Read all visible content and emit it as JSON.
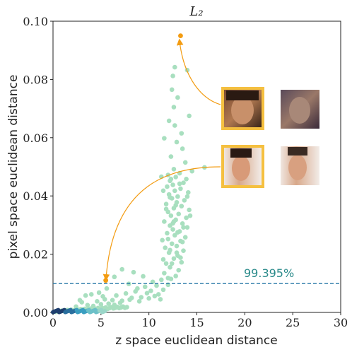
{
  "chart_data": {
    "type": "scatter",
    "title": "L₂",
    "xlabel": "z space euclidean distance",
    "ylabel": "pixel space euclidean distance",
    "xlim": [
      0,
      30
    ],
    "ylim": [
      0,
      0.1
    ],
    "xticks": [
      "0",
      "5",
      "10",
      "15",
      "20",
      "25",
      "30"
    ],
    "yticks": [
      "0.00",
      "0.02",
      "0.04",
      "0.06",
      "0.08",
      "0.10"
    ],
    "threshold": {
      "y": 0.0099,
      "label": "99.395%",
      "color": "#2a7aa8",
      "label_color": "#2a8a8a"
    },
    "point_color": "#a8dfbf",
    "highlight_color": "#f39c12",
    "highlighted_points": [
      {
        "x": 13.3,
        "y": 0.095
      },
      {
        "x": 5.5,
        "y": 0.011
      }
    ],
    "dense_points_near_origin_color": "#1f4e79",
    "points": [
      [
        0.3,
        0.0002
      ],
      [
        0.5,
        0.0004
      ],
      [
        0.7,
        0.0003
      ],
      [
        0.9,
        0.0006
      ],
      [
        1.1,
        0.0005
      ],
      [
        1.3,
        0.0007
      ],
      [
        1.5,
        0.0008
      ],
      [
        1.7,
        0.0006
      ],
      [
        1.9,
        0.0009
      ],
      [
        2.1,
        0.0007
      ],
      [
        2.3,
        0.0008
      ],
      [
        2.5,
        0.001
      ],
      [
        2.7,
        0.0009
      ],
      [
        2.9,
        0.0011
      ],
      [
        3.1,
        0.001
      ],
      [
        3.3,
        0.0012
      ],
      [
        3.5,
        0.0009
      ],
      [
        3.7,
        0.0011
      ],
      [
        3.9,
        0.0013
      ],
      [
        4.1,
        0.001
      ],
      [
        4.3,
        0.0014
      ],
      [
        4.5,
        0.0012
      ],
      [
        4.7,
        0.0015
      ],
      [
        4.9,
        0.0011
      ],
      [
        5.1,
        0.0016
      ],
      [
        5.3,
        0.0013
      ],
      [
        5.5,
        0.0017
      ],
      [
        5.7,
        0.0012
      ],
      [
        5.9,
        0.0015
      ],
      [
        6.1,
        0.0018
      ],
      [
        6.3,
        0.0014
      ],
      [
        6.5,
        0.0016
      ],
      [
        6.7,
        0.0019
      ],
      [
        6.9,
        0.0015
      ],
      [
        7.1,
        0.0017
      ],
      [
        7.3,
        0.002
      ],
      [
        7.5,
        0.0016
      ],
      [
        7.7,
        0.0018
      ],
      [
        2.4,
        0.002
      ],
      [
        3.6,
        0.0025
      ],
      [
        4.2,
        0.0022
      ],
      [
        5.0,
        0.0028
      ],
      [
        5.8,
        0.003
      ],
      [
        6.4,
        0.0026
      ],
      [
        7.0,
        0.0033
      ],
      [
        3.0,
        0.0035
      ],
      [
        4.6,
        0.0038
      ],
      [
        5.4,
        0.0045
      ],
      [
        6.2,
        0.0042
      ],
      [
        7.2,
        0.004
      ],
      [
        4.0,
        0.0062
      ],
      [
        5.2,
        0.0055
      ],
      [
        6.6,
        0.0058
      ],
      [
        7.6,
        0.0065
      ],
      [
        8.2,
        0.005
      ],
      [
        8.6,
        0.0072
      ],
      [
        9.2,
        0.0052
      ],
      [
        9.6,
        0.0088
      ],
      [
        10.2,
        0.0074
      ],
      [
        10.8,
        0.0092
      ],
      [
        9.0,
        0.0038
      ],
      [
        8.0,
        0.0044
      ],
      [
        10.0,
        0.0048
      ],
      [
        11.0,
        0.0062
      ],
      [
        11.5,
        0.0078
      ],
      [
        12.0,
        0.0095
      ],
      [
        12.3,
        0.0115
      ],
      [
        12.8,
        0.0125
      ],
      [
        11.6,
        0.0135
      ],
      [
        13.1,
        0.0145
      ],
      [
        12.2,
        0.0155
      ],
      [
        11.8,
        0.0168
      ],
      [
        13.4,
        0.0172
      ],
      [
        12.6,
        0.0185
      ],
      [
        13.0,
        0.0195
      ],
      [
        12.1,
        0.0205
      ],
      [
        13.6,
        0.0212
      ],
      [
        11.7,
        0.0222
      ],
      [
        12.9,
        0.0228
      ],
      [
        12.4,
        0.0236
      ],
      [
        13.3,
        0.0245
      ],
      [
        12.0,
        0.0252
      ],
      [
        13.8,
        0.0258
      ],
      [
        12.7,
        0.0265
      ],
      [
        11.9,
        0.0272
      ],
      [
        13.2,
        0.0278
      ],
      [
        12.5,
        0.0285
      ],
      [
        14.0,
        0.0292
      ],
      [
        12.2,
        0.0298
      ],
      [
        13.5,
        0.0305
      ],
      [
        11.6,
        0.0312
      ],
      [
        12.8,
        0.0318
      ],
      [
        13.9,
        0.0325
      ],
      [
        12.3,
        0.0332
      ],
      [
        13.1,
        0.0338
      ],
      [
        12.0,
        0.0345
      ],
      [
        14.2,
        0.0352
      ],
      [
        12.6,
        0.0358
      ],
      [
        13.4,
        0.0365
      ],
      [
        11.8,
        0.0372
      ],
      [
        12.9,
        0.0378
      ],
      [
        13.7,
        0.0385
      ],
      [
        12.4,
        0.0392
      ],
      [
        13.0,
        0.0398
      ],
      [
        12.1,
        0.0405
      ],
      [
        14.1,
        0.0412
      ],
      [
        12.7,
        0.0418
      ],
      [
        13.3,
        0.0425
      ],
      [
        11.9,
        0.0432
      ],
      [
        12.5,
        0.0438
      ],
      [
        13.6,
        0.0445
      ],
      [
        12.2,
        0.0452
      ],
      [
        13.9,
        0.0458
      ],
      [
        12.8,
        0.0465
      ],
      [
        12.0,
        0.0472
      ],
      [
        13.2,
        0.0478
      ],
      [
        14.5,
        0.0485
      ],
      [
        12.6,
        0.0492
      ],
      [
        15.8,
        0.0498
      ],
      [
        13.8,
        0.0515
      ],
      [
        12.3,
        0.0535
      ],
      [
        13.5,
        0.0562
      ],
      [
        12.9,
        0.0585
      ],
      [
        11.6,
        0.0598
      ],
      [
        13.4,
        0.0615
      ],
      [
        12.7,
        0.0642
      ],
      [
        12.1,
        0.0658
      ],
      [
        14.2,
        0.0675
      ],
      [
        12.6,
        0.0705
      ],
      [
        13.0,
        0.0738
      ],
      [
        12.4,
        0.0765
      ],
      [
        12.5,
        0.0812
      ],
      [
        12.7,
        0.0842
      ],
      [
        14.0,
        0.0832
      ],
      [
        11.2,
        0.0045
      ],
      [
        10.6,
        0.0056
      ],
      [
        9.8,
        0.0066
      ],
      [
        8.8,
        0.0082
      ],
      [
        7.9,
        0.0098
      ],
      [
        10.4,
        0.0105
      ],
      [
        11.3,
        0.0112
      ],
      [
        12.0,
        0.0118
      ],
      [
        9.4,
        0.0124
      ],
      [
        8.4,
        0.0138
      ],
      [
        7.2,
        0.0148
      ],
      [
        6.4,
        0.0122
      ],
      [
        5.6,
        0.0082
      ],
      [
        4.8,
        0.0068
      ],
      [
        3.4,
        0.0058
      ],
      [
        2.8,
        0.0042
      ],
      [
        11.5,
        0.0182
      ],
      [
        12.2,
        0.0214
      ],
      [
        11.4,
        0.0248
      ],
      [
        12.5,
        0.0306
      ],
      [
        11.8,
        0.0355
      ],
      [
        12.2,
        0.0395
      ],
      [
        11.5,
        0.0418
      ],
      [
        12.3,
        0.0458
      ],
      [
        11.3,
        0.0466
      ],
      [
        12.6,
        0.0312
      ],
      [
        13.6,
        0.0292
      ],
      [
        14.3,
        0.0332
      ],
      [
        14.0,
        0.0398
      ],
      [
        13.2,
        0.0442
      ],
      [
        12.8,
        0.0368
      ],
      [
        13.0,
        0.0275
      ],
      [
        13.5,
        0.0242
      ],
      [
        12.9,
        0.0205
      ],
      [
        13.3,
        0.0188
      ],
      [
        12.4,
        0.0168
      ]
    ]
  },
  "insets": {
    "top_pair": {
      "left_label": "face-thumb",
      "right_label": "face-thumb"
    },
    "bottom_pair": {
      "left_label": "face-thumb",
      "right_label": "face-thumb"
    }
  }
}
